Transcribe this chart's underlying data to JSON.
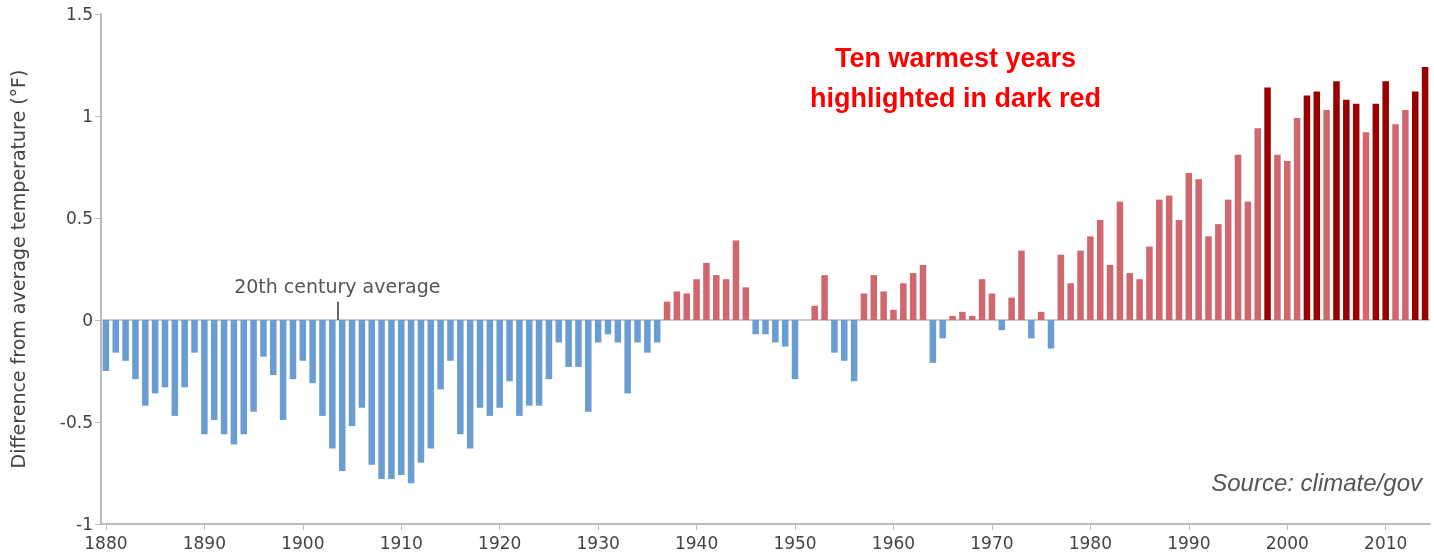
{
  "chart_data": {
    "type": "bar",
    "ylabel": "Difference from average temperature (°F)",
    "x": [
      1880,
      1881,
      1882,
      1883,
      1884,
      1885,
      1886,
      1887,
      1888,
      1889,
      1890,
      1891,
      1892,
      1893,
      1894,
      1895,
      1896,
      1897,
      1898,
      1899,
      1900,
      1901,
      1902,
      1903,
      1904,
      1905,
      1906,
      1907,
      1908,
      1909,
      1910,
      1911,
      1912,
      1913,
      1914,
      1915,
      1916,
      1917,
      1918,
      1919,
      1920,
      1921,
      1922,
      1923,
      1924,
      1925,
      1926,
      1927,
      1928,
      1929,
      1930,
      1931,
      1932,
      1933,
      1934,
      1935,
      1936,
      1937,
      1938,
      1939,
      1940,
      1941,
      1942,
      1943,
      1944,
      1945,
      1946,
      1947,
      1948,
      1949,
      1950,
      1951,
      1952,
      1953,
      1954,
      1955,
      1956,
      1957,
      1958,
      1959,
      1960,
      1961,
      1962,
      1963,
      1964,
      1965,
      1966,
      1967,
      1968,
      1969,
      1970,
      1971,
      1972,
      1973,
      1974,
      1975,
      1976,
      1977,
      1978,
      1979,
      1980,
      1981,
      1982,
      1983,
      1984,
      1985,
      1986,
      1987,
      1988,
      1989,
      1990,
      1991,
      1992,
      1993,
      1994,
      1995,
      1996,
      1997,
      1998,
      1999,
      2000,
      2001,
      2002,
      2003,
      2004,
      2005,
      2006,
      2007,
      2008,
      2009,
      2010,
      2011,
      2012,
      2013,
      2014
    ],
    "values": [
      -0.25,
      -0.16,
      -0.2,
      -0.29,
      -0.42,
      -0.36,
      -0.33,
      -0.47,
      -0.33,
      -0.16,
      -0.56,
      -0.49,
      -0.56,
      -0.61,
      -0.56,
      -0.45,
      -0.18,
      -0.27,
      -0.49,
      -0.29,
      -0.2,
      -0.31,
      -0.47,
      -0.63,
      -0.74,
      -0.52,
      -0.43,
      -0.71,
      -0.78,
      -0.78,
      -0.76,
      -0.8,
      -0.7,
      -0.63,
      -0.34,
      -0.2,
      -0.56,
      -0.63,
      -0.43,
      -0.47,
      -0.43,
      -0.3,
      -0.47,
      -0.42,
      -0.42,
      -0.29,
      -0.11,
      -0.23,
      -0.23,
      -0.45,
      -0.11,
      -0.07,
      -0.11,
      -0.36,
      -0.11,
      -0.16,
      -0.11,
      0.09,
      0.14,
      0.13,
      0.2,
      0.28,
      0.22,
      0.2,
      0.39,
      0.16,
      -0.07,
      -0.07,
      -0.11,
      -0.13,
      -0.29,
      0.0,
      0.07,
      0.22,
      -0.16,
      -0.2,
      -0.3,
      0.13,
      0.22,
      0.14,
      0.05,
      0.18,
      0.23,
      0.27,
      -0.21,
      -0.09,
      0.02,
      0.04,
      0.02,
      0.2,
      0.13,
      -0.05,
      0.11,
      0.34,
      -0.09,
      0.04,
      -0.14,
      0.32,
      0.18,
      0.34,
      0.41,
      0.49,
      0.27,
      0.58,
      0.23,
      0.2,
      0.36,
      0.59,
      0.61,
      0.49,
      0.72,
      0.69,
      0.41,
      0.47,
      0.59,
      0.81,
      0.58,
      0.94,
      1.14,
      0.81,
      0.78,
      0.99,
      1.1,
      1.12,
      1.03,
      1.17,
      1.08,
      1.06,
      0.92,
      1.06,
      1.17,
      0.96,
      1.03,
      1.12,
      1.24
    ],
    "colors": [
      "#6a9ed3",
      "#6a9ed3",
      "#6a9ed3",
      "#6a9ed3",
      "#6a9ed3",
      "#6a9ed3",
      "#6a9ed3",
      "#6a9ed3",
      "#6a9ed3",
      "#6a9ed3",
      "#6a9ed3",
      "#6a9ed3",
      "#6a9ed3",
      "#6a9ed3",
      "#6a9ed3",
      "#6a9ed3",
      "#6a9ed3",
      "#6a9ed3",
      "#6a9ed3",
      "#6a9ed3",
      "#6a9ed3",
      "#6a9ed3",
      "#6a9ed3",
      "#6a9ed3",
      "#6a9ed3",
      "#6a9ed3",
      "#6a9ed3",
      "#6a9ed3",
      "#6a9ed3",
      "#6a9ed3",
      "#6a9ed3",
      "#6a9ed3",
      "#6a9ed3",
      "#6a9ed3",
      "#6a9ed3",
      "#6a9ed3",
      "#6a9ed3",
      "#6a9ed3",
      "#6a9ed3",
      "#6a9ed3",
      "#6a9ed3",
      "#6a9ed3",
      "#6a9ed3",
      "#6a9ed3",
      "#6a9ed3",
      "#6a9ed3",
      "#6a9ed3",
      "#6a9ed3",
      "#6a9ed3",
      "#6a9ed3",
      "#6a9ed3",
      "#6a9ed3",
      "#6a9ed3",
      "#6a9ed3",
      "#6a9ed3",
      "#6a9ed3",
      "#6a9ed3",
      "#d0666e",
      "#d0666e",
      "#d0666e",
      "#d0666e",
      "#d0666e",
      "#d0666e",
      "#d0666e",
      "#d0666e",
      "#d0666e",
      "#6a9ed3",
      "#6a9ed3",
      "#6a9ed3",
      "#6a9ed3",
      "#6a9ed3",
      "#d0666e",
      "#d0666e",
      "#d0666e",
      "#6a9ed3",
      "#6a9ed3",
      "#6a9ed3",
      "#d0666e",
      "#d0666e",
      "#d0666e",
      "#d0666e",
      "#d0666e",
      "#d0666e",
      "#d0666e",
      "#6a9ed3",
      "#6a9ed3",
      "#d0666e",
      "#d0666e",
      "#d0666e",
      "#d0666e",
      "#d0666e",
      "#6a9ed3",
      "#d0666e",
      "#d0666e",
      "#6a9ed3",
      "#d0666e",
      "#6a9ed3",
      "#d0666e",
      "#d0666e",
      "#d0666e",
      "#d0666e",
      "#d0666e",
      "#d0666e",
      "#d0666e",
      "#d0666e",
      "#d0666e",
      "#d0666e",
      "#d0666e",
      "#d0666e",
      "#d0666e",
      "#d0666e",
      "#d0666e",
      "#d0666e",
      "#d0666e",
      "#d0666e",
      "#d0666e",
      "#d0666e",
      "#d0666e",
      "#990000",
      "#d0666e",
      "#d0666e",
      "#d0666e",
      "#990000",
      "#990000",
      "#d0666e",
      "#990000",
      "#990000",
      "#990000",
      "#d0666e",
      "#990000",
      "#990000",
      "#d0666e",
      "#d0666e",
      "#990000",
      "#990000"
    ],
    "xlim": [
      1879.5,
      2014.5
    ],
    "xticks": [
      1880,
      1890,
      1900,
      1910,
      1920,
      1930,
      1940,
      1950,
      1960,
      1970,
      1980,
      1990,
      2000,
      2010
    ],
    "ylim": [
      -1,
      1.5
    ],
    "yticks": [
      -1,
      -0.5,
      0,
      0.5,
      1,
      1.5
    ],
    "ref_lines": [
      {
        "axis": "y",
        "value": 0,
        "color": "#c8c8c8"
      }
    ],
    "annotations": [
      {
        "text": "20th century average",
        "x": 1903.5,
        "y": 0
      },
      "Ten warmest years\nhighlighted in dark red",
      "Source: climate/gov"
    ]
  }
}
